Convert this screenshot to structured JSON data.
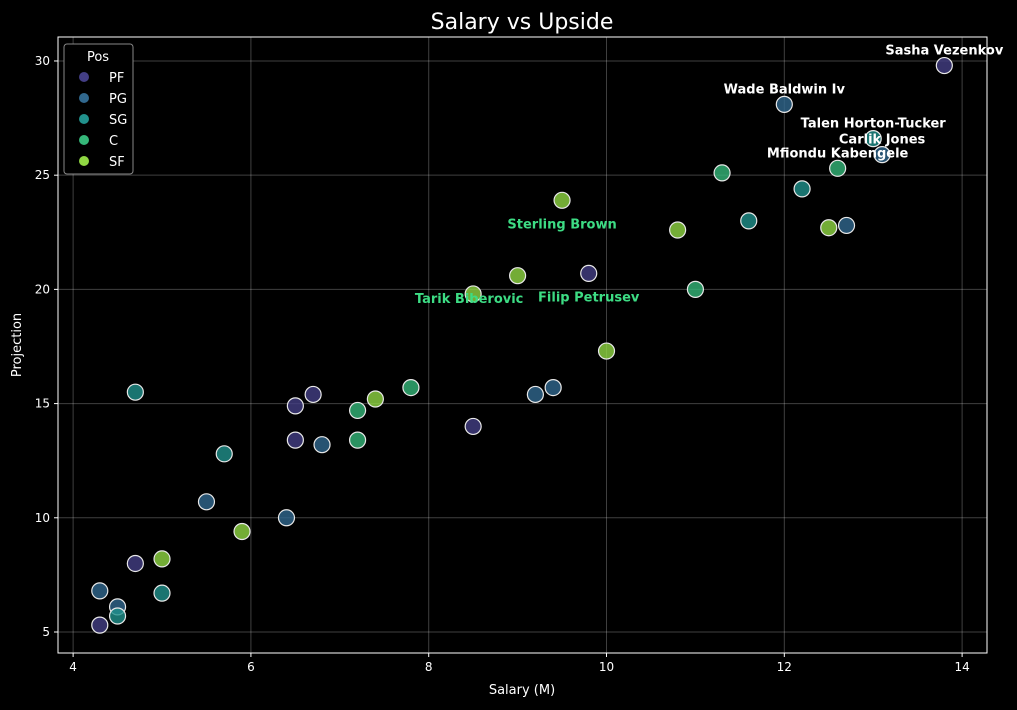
{
  "chart_data": {
    "type": "scatter",
    "title": "Salary vs Upside",
    "xlabel": "Salary (M)",
    "ylabel": "Projection",
    "xlim": [
      3.83,
      14.28
    ],
    "ylim": [
      4.08,
      31.05
    ],
    "xticks": [
      4,
      6,
      8,
      10,
      12,
      14
    ],
    "yticks": [
      5,
      10,
      15,
      20,
      25,
      30
    ],
    "grid": true,
    "legend": {
      "title": "Pos",
      "placement": "top-left"
    },
    "series": [
      {
        "name": "PF",
        "color": "#433e85",
        "points": [
          [
            4.3,
            5.3
          ],
          [
            4.7,
            8.0
          ],
          [
            6.5,
            14.9
          ],
          [
            6.7,
            15.4
          ],
          [
            6.5,
            13.4
          ],
          [
            8.5,
            14.0
          ],
          [
            9.8,
            20.7
          ],
          [
            13.8,
            29.8
          ]
        ]
      },
      {
        "name": "PG",
        "color": "#31688e",
        "points": [
          [
            4.3,
            6.8
          ],
          [
            4.5,
            6.1
          ],
          [
            5.5,
            10.7
          ],
          [
            6.4,
            10.0
          ],
          [
            6.8,
            13.2
          ],
          [
            9.2,
            15.4
          ],
          [
            9.4,
            15.7
          ],
          [
            12.0,
            28.1
          ],
          [
            12.7,
            22.8
          ],
          [
            13.1,
            25.9
          ]
        ]
      },
      {
        "name": "SG",
        "color": "#21918c",
        "points": [
          [
            4.5,
            5.7
          ],
          [
            4.7,
            15.5
          ],
          [
            5.0,
            6.7
          ],
          [
            5.7,
            12.8
          ],
          [
            11.6,
            23.0
          ],
          [
            12.2,
            24.4
          ],
          [
            13.0,
            26.6
          ]
        ]
      },
      {
        "name": "C",
        "color": "#35b779",
        "points": [
          [
            7.2,
            14.7
          ],
          [
            7.2,
            13.4
          ],
          [
            7.8,
            15.7
          ],
          [
            11.0,
            20.0
          ],
          [
            11.3,
            25.1
          ],
          [
            12.6,
            25.3
          ]
        ]
      },
      {
        "name": "SF",
        "color": "#90d743",
        "points": [
          [
            5.0,
            8.2
          ],
          [
            5.9,
            9.4
          ],
          [
            7.4,
            15.2
          ],
          [
            8.5,
            19.8
          ],
          [
            9.0,
            20.6
          ],
          [
            9.5,
            23.9
          ],
          [
            10.0,
            17.3
          ],
          [
            10.8,
            22.6
          ],
          [
            12.5,
            22.7
          ]
        ]
      }
    ],
    "annotations": [
      {
        "text": "Sasha Vezenkov",
        "x": 13.8,
        "y": 29.8,
        "kind": "top",
        "color": "#ffffff"
      },
      {
        "text": "Wade Baldwin Iv",
        "x": 12.0,
        "y": 28.1,
        "kind": "top",
        "color": "#ffffff"
      },
      {
        "text": "Talen Horton-Tucker",
        "x": 13.0,
        "y": 26.6,
        "kind": "top",
        "color": "#ffffff"
      },
      {
        "text": "Carlik Jones",
        "x": 13.1,
        "y": 25.9,
        "kind": "top",
        "color": "#ffffff"
      },
      {
        "text": "Mfiondu Kabengele",
        "x": 12.6,
        "y": 25.3,
        "kind": "top",
        "color": "#ffffff"
      },
      {
        "text": "Sterling Brown",
        "x": 9.5,
        "y": 23.9,
        "kind": "value",
        "color": "#3ddc84"
      },
      {
        "text": "Filip Petrusev",
        "x": 9.8,
        "y": 20.7,
        "kind": "value",
        "color": "#3ddc84"
      },
      {
        "text": "Tarik Biberovic",
        "x": 8.5,
        "y": 19.8,
        "kind": "value",
        "color": "#3ddc84"
      }
    ]
  }
}
